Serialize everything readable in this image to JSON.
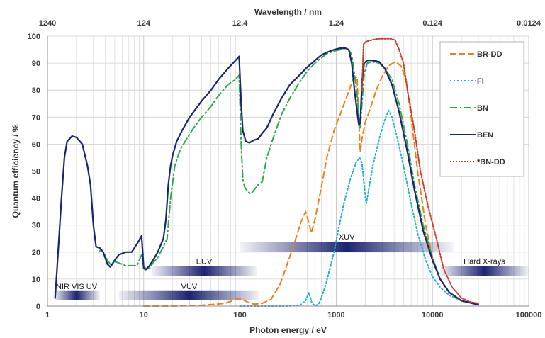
{
  "chart_data": {
    "type": "line",
    "xlabel": "Photon energy / eV",
    "ylabel": "Quantum efficiency / %",
    "top_axis_title": "Wavelength / nm",
    "x_scale": "log",
    "xlim": [
      1,
      100000
    ],
    "ylim": [
      0,
      100
    ],
    "grid": true,
    "legend_position": "top-right",
    "x_tick_labels": [
      "1",
      "10",
      "100",
      "1000",
      "10000",
      "100000"
    ],
    "y_tick_labels": [
      "0",
      "10",
      "20",
      "30",
      "40",
      "50",
      "60",
      "70",
      "80",
      "90",
      "100"
    ],
    "top_tick_labels": [
      "1240",
      "124",
      "12.4",
      "1.24",
      "0.124",
      "0.0124"
    ],
    "bands": [
      {
        "label": "NIR VIS UV",
        "range": [
          1.15,
          3.5
        ],
        "y": 4
      },
      {
        "label": "VUV",
        "range": [
          5.5,
          160
        ],
        "y": 4
      },
      {
        "label": "EUV",
        "range": [
          12,
          150
        ],
        "y": 13
      },
      {
        "label": "XUV",
        "range": [
          100,
          16500
        ],
        "y": 22
      },
      {
        "label": "Hard X-rays",
        "range": [
          12000,
          100000
        ],
        "y": 13
      }
    ],
    "series": [
      {
        "name": "BR-DD",
        "color": "#f07f1a",
        "dash": "8,5",
        "points": [
          [
            10,
            0
          ],
          [
            20,
            0
          ],
          [
            40,
            0.3
          ],
          [
            70,
            1
          ],
          [
            90,
            2.5
          ],
          [
            100,
            2.8
          ],
          [
            120,
            1.5
          ],
          [
            140,
            0.7
          ],
          [
            170,
            1
          ],
          [
            210,
            2.5
          ],
          [
            260,
            8
          ],
          [
            320,
            17
          ],
          [
            380,
            25
          ],
          [
            430,
            31
          ],
          [
            480,
            35
          ],
          [
            520,
            31
          ],
          [
            550,
            27
          ],
          [
            600,
            32
          ],
          [
            700,
            44
          ],
          [
            800,
            55
          ],
          [
            950,
            65
          ],
          [
            1100,
            71
          ],
          [
            1300,
            78
          ],
          [
            1500,
            84
          ],
          [
            1650,
            85
          ],
          [
            1720,
            68
          ],
          [
            1780,
            57
          ],
          [
            1850,
            62
          ],
          [
            2000,
            68
          ],
          [
            2300,
            74
          ],
          [
            2600,
            80
          ],
          [
            3000,
            85
          ],
          [
            3500,
            89
          ],
          [
            4100,
            90.5
          ],
          [
            4700,
            89
          ],
          [
            5300,
            84
          ],
          [
            6000,
            70
          ],
          [
            7000,
            50
          ],
          [
            8500,
            30
          ],
          [
            10000,
            18
          ],
          [
            12000,
            10
          ],
          [
            15000,
            5
          ],
          [
            20000,
            2
          ],
          [
            30000,
            0.5
          ]
        ]
      },
      {
        "name": "FI",
        "color": "#1fb0d0",
        "dash": "2,3",
        "points": [
          [
            100,
            0
          ],
          [
            300,
            0
          ],
          [
            420,
            0.3
          ],
          [
            480,
            2
          ],
          [
            520,
            5
          ],
          [
            560,
            1
          ],
          [
            600,
            0.3
          ],
          [
            650,
            0.5
          ],
          [
            700,
            3
          ],
          [
            780,
            8
          ],
          [
            860,
            14
          ],
          [
            950,
            20
          ],
          [
            1050,
            28
          ],
          [
            1200,
            38
          ],
          [
            1400,
            47
          ],
          [
            1600,
            53
          ],
          [
            1750,
            55
          ],
          [
            1850,
            53
          ],
          [
            1950,
            45
          ],
          [
            2000,
            41
          ],
          [
            2050,
            38
          ],
          [
            2150,
            42
          ],
          [
            2400,
            52
          ],
          [
            2800,
            62
          ],
          [
            3200,
            69
          ],
          [
            3500,
            72.5
          ],
          [
            3800,
            70
          ],
          [
            4200,
            64
          ],
          [
            5000,
            52
          ],
          [
            6000,
            38
          ],
          [
            7000,
            27
          ],
          [
            8500,
            17
          ],
          [
            10000,
            11
          ],
          [
            12000,
            7
          ],
          [
            15000,
            4
          ],
          [
            20000,
            2
          ],
          [
            30000,
            0.5
          ]
        ]
      },
      {
        "name": "BN",
        "color": "#2ba84a",
        "dash": "10,4,2,4",
        "points": [
          [
            3.4,
            20
          ],
          [
            3.6,
            21
          ],
          [
            3.8,
            20
          ],
          [
            4.2,
            17
          ],
          [
            4.6,
            15
          ],
          [
            5,
            16.5
          ],
          [
            5.5,
            16
          ],
          [
            6.5,
            15
          ],
          [
            7.5,
            15
          ],
          [
            8.5,
            15
          ],
          [
            9.5,
            19
          ],
          [
            10,
            14.5
          ],
          [
            10.5,
            14
          ],
          [
            11.5,
            14
          ],
          [
            12.5,
            16
          ],
          [
            14,
            18
          ],
          [
            16,
            22
          ],
          [
            17.5,
            25
          ],
          [
            19,
            40
          ],
          [
            21,
            52
          ],
          [
            24,
            58
          ],
          [
            28,
            62
          ],
          [
            33,
            66
          ],
          [
            40,
            70
          ],
          [
            50,
            74
          ],
          [
            60,
            78
          ],
          [
            75,
            82
          ],
          [
            90,
            84
          ],
          [
            98,
            85.5
          ],
          [
            103,
            60
          ],
          [
            107,
            47
          ],
          [
            112,
            44
          ],
          [
            120,
            42.5
          ],
          [
            130,
            41.5
          ],
          [
            140,
            43
          ],
          [
            155,
            45
          ],
          [
            170,
            46
          ],
          [
            190,
            55
          ],
          [
            220,
            62
          ],
          [
            270,
            71
          ],
          [
            330,
            77
          ],
          [
            400,
            82
          ],
          [
            500,
            87
          ],
          [
            600,
            90
          ],
          [
            700,
            92
          ],
          [
            800,
            93.5
          ],
          [
            950,
            94.5
          ],
          [
            1100,
            95
          ],
          [
            1250,
            95.5
          ],
          [
            1350,
            95
          ],
          [
            1450,
            93
          ],
          [
            1550,
            86
          ],
          [
            1650,
            78
          ],
          [
            1720,
            70
          ],
          [
            1780,
            66
          ],
          [
            1850,
            75
          ],
          [
            1950,
            86
          ],
          [
            2100,
            90
          ],
          [
            2400,
            90.5
          ],
          [
            2800,
            90
          ],
          [
            3200,
            88
          ],
          [
            3800,
            84
          ],
          [
            4500,
            75
          ],
          [
            5500,
            60
          ],
          [
            6500,
            45
          ],
          [
            8000,
            30
          ],
          [
            10000,
            18
          ],
          [
            12000,
            10
          ],
          [
            15000,
            5
          ],
          [
            20000,
            2
          ],
          [
            30000,
            0.5
          ]
        ]
      },
      {
        "name": "BEN",
        "color": "#1b2470",
        "dash": "",
        "points": [
          [
            1.2,
            3
          ],
          [
            1.3,
            22
          ],
          [
            1.4,
            40
          ],
          [
            1.5,
            55
          ],
          [
            1.6,
            61
          ],
          [
            1.8,
            63
          ],
          [
            2,
            62.5
          ],
          [
            2.3,
            60
          ],
          [
            2.6,
            52
          ],
          [
            2.8,
            45
          ],
          [
            3,
            30
          ],
          [
            3.2,
            22
          ],
          [
            3.5,
            21.5
          ],
          [
            3.8,
            20
          ],
          [
            4.2,
            15.5
          ],
          [
            4.5,
            14.5
          ],
          [
            5,
            17
          ],
          [
            5.5,
            19
          ],
          [
            6.5,
            20
          ],
          [
            7.5,
            20
          ],
          [
            8.5,
            23
          ],
          [
            9.5,
            26
          ],
          [
            10,
            14
          ],
          [
            10.5,
            13.5
          ],
          [
            11.5,
            15
          ],
          [
            12.5,
            17
          ],
          [
            14,
            20
          ],
          [
            16,
            25
          ],
          [
            17,
            32
          ],
          [
            18,
            45
          ],
          [
            19,
            52
          ],
          [
            20,
            56
          ],
          [
            22,
            61
          ],
          [
            25,
            65
          ],
          [
            30,
            70
          ],
          [
            40,
            76
          ],
          [
            50,
            80
          ],
          [
            60,
            84
          ],
          [
            75,
            88
          ],
          [
            90,
            91
          ],
          [
            98,
            92.5
          ],
          [
            103,
            75
          ],
          [
            107,
            65
          ],
          [
            115,
            61
          ],
          [
            125,
            60.5
          ],
          [
            140,
            61.5
          ],
          [
            155,
            62
          ],
          [
            170,
            64
          ],
          [
            190,
            66
          ],
          [
            220,
            71
          ],
          [
            270,
            77
          ],
          [
            330,
            82
          ],
          [
            400,
            85
          ],
          [
            500,
            88.5
          ],
          [
            600,
            91
          ],
          [
            700,
            93
          ],
          [
            800,
            94
          ],
          [
            950,
            95
          ],
          [
            1100,
            95.5
          ],
          [
            1250,
            95.5
          ],
          [
            1350,
            95
          ],
          [
            1450,
            90
          ],
          [
            1550,
            80
          ],
          [
            1650,
            72
          ],
          [
            1720,
            67
          ],
          [
            1780,
            68
          ],
          [
            1850,
            83
          ],
          [
            1950,
            90
          ],
          [
            2100,
            91
          ],
          [
            2400,
            91
          ],
          [
            2800,
            90.5
          ],
          [
            3200,
            88
          ],
          [
            3800,
            82
          ],
          [
            4500,
            72
          ],
          [
            5500,
            57
          ],
          [
            6500,
            43
          ],
          [
            8000,
            28
          ],
          [
            10000,
            17
          ],
          [
            12000,
            10
          ],
          [
            15000,
            5
          ],
          [
            20000,
            2
          ],
          [
            30000,
            0.5
          ]
        ]
      },
      {
        "name": "*BN-DD",
        "color": "#c93a26",
        "dash": "2,2",
        "points": [
          [
            1850,
            80
          ],
          [
            1920,
            97
          ],
          [
            2050,
            98
          ],
          [
            2300,
            98.5
          ],
          [
            2700,
            99
          ],
          [
            3200,
            99
          ],
          [
            3700,
            99
          ],
          [
            4100,
            98.5
          ],
          [
            4500,
            95
          ],
          [
            5000,
            90
          ],
          [
            5500,
            80
          ],
          [
            6500,
            65
          ],
          [
            7500,
            50
          ],
          [
            9000,
            37
          ],
          [
            11000,
            25
          ],
          [
            13000,
            14
          ],
          [
            16000,
            7
          ],
          [
            20000,
            3
          ],
          [
            25000,
            1.5
          ],
          [
            30000,
            1
          ]
        ]
      }
    ]
  }
}
